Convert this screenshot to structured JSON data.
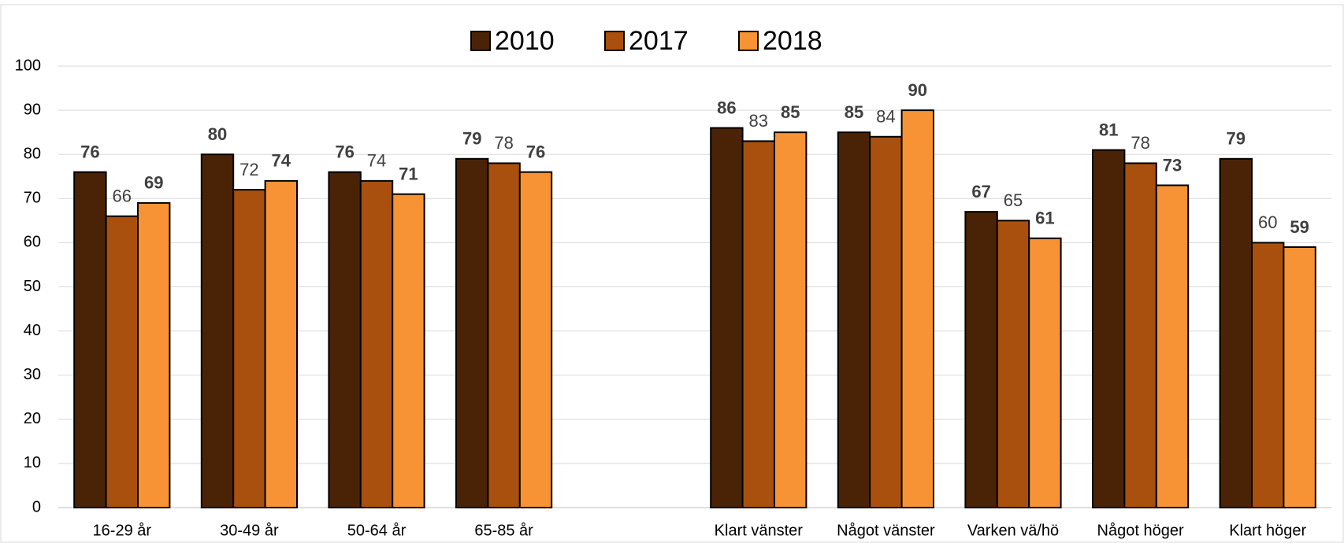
{
  "chart_data": {
    "type": "bar",
    "categories": [
      "16-29 år",
      "30-49 år",
      "50-64 år",
      "65-85 år",
      null,
      "Klart vänster",
      "Något vänster",
      "Varken vä/hö",
      "Något höger",
      "Klart höger"
    ],
    "series": [
      {
        "name": "2010",
        "color": "#4a2307",
        "values": [
          76,
          80,
          76,
          79,
          null,
          86,
          85,
          67,
          81,
          79
        ]
      },
      {
        "name": "2017",
        "color": "#a9500f",
        "values": [
          66,
          72,
          74,
          78,
          null,
          83,
          84,
          65,
          78,
          60
        ]
      },
      {
        "name": "2018",
        "color": "#f79334",
        "values": [
          69,
          74,
          71,
          76,
          null,
          85,
          90,
          61,
          73,
          59
        ]
      }
    ],
    "ylim": [
      0,
      100
    ],
    "yticks": [
      0,
      10,
      20,
      30,
      40,
      50,
      60,
      70,
      80,
      90,
      100
    ],
    "grid": true,
    "legend": "top"
  }
}
